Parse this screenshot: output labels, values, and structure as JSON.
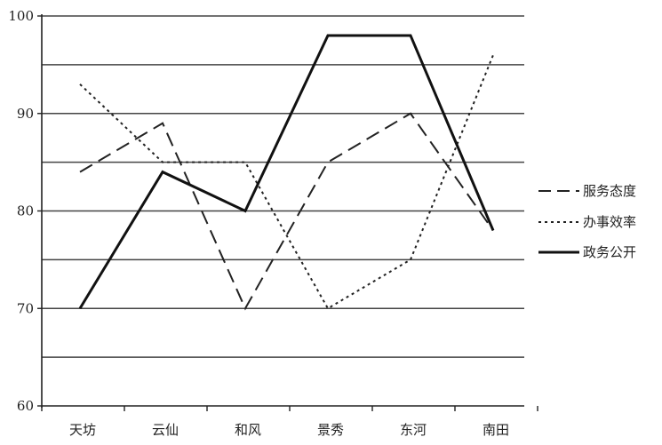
{
  "chart_data": {
    "type": "line",
    "categories": [
      "天坊",
      "云仙",
      "和风",
      "景秀",
      "东河",
      "南田"
    ],
    "series": [
      {
        "name": "服务态度",
        "values": [
          84,
          89,
          70,
          85,
          90,
          78
        ],
        "style": "dashed",
        "color": "#222222"
      },
      {
        "name": "办事效率",
        "values": [
          93,
          85,
          85,
          70,
          75,
          96
        ],
        "style": "dotted",
        "color": "#222222"
      },
      {
        "name": "政务公开",
        "values": [
          70,
          84,
          80,
          98,
          98,
          78
        ],
        "style": "solid",
        "color": "#111111"
      }
    ],
    "y_ticks": [
      "60",
      "70",
      "80",
      "90",
      "100"
    ],
    "ylim": [
      60,
      100
    ],
    "grid": true,
    "legend_position": "right"
  }
}
